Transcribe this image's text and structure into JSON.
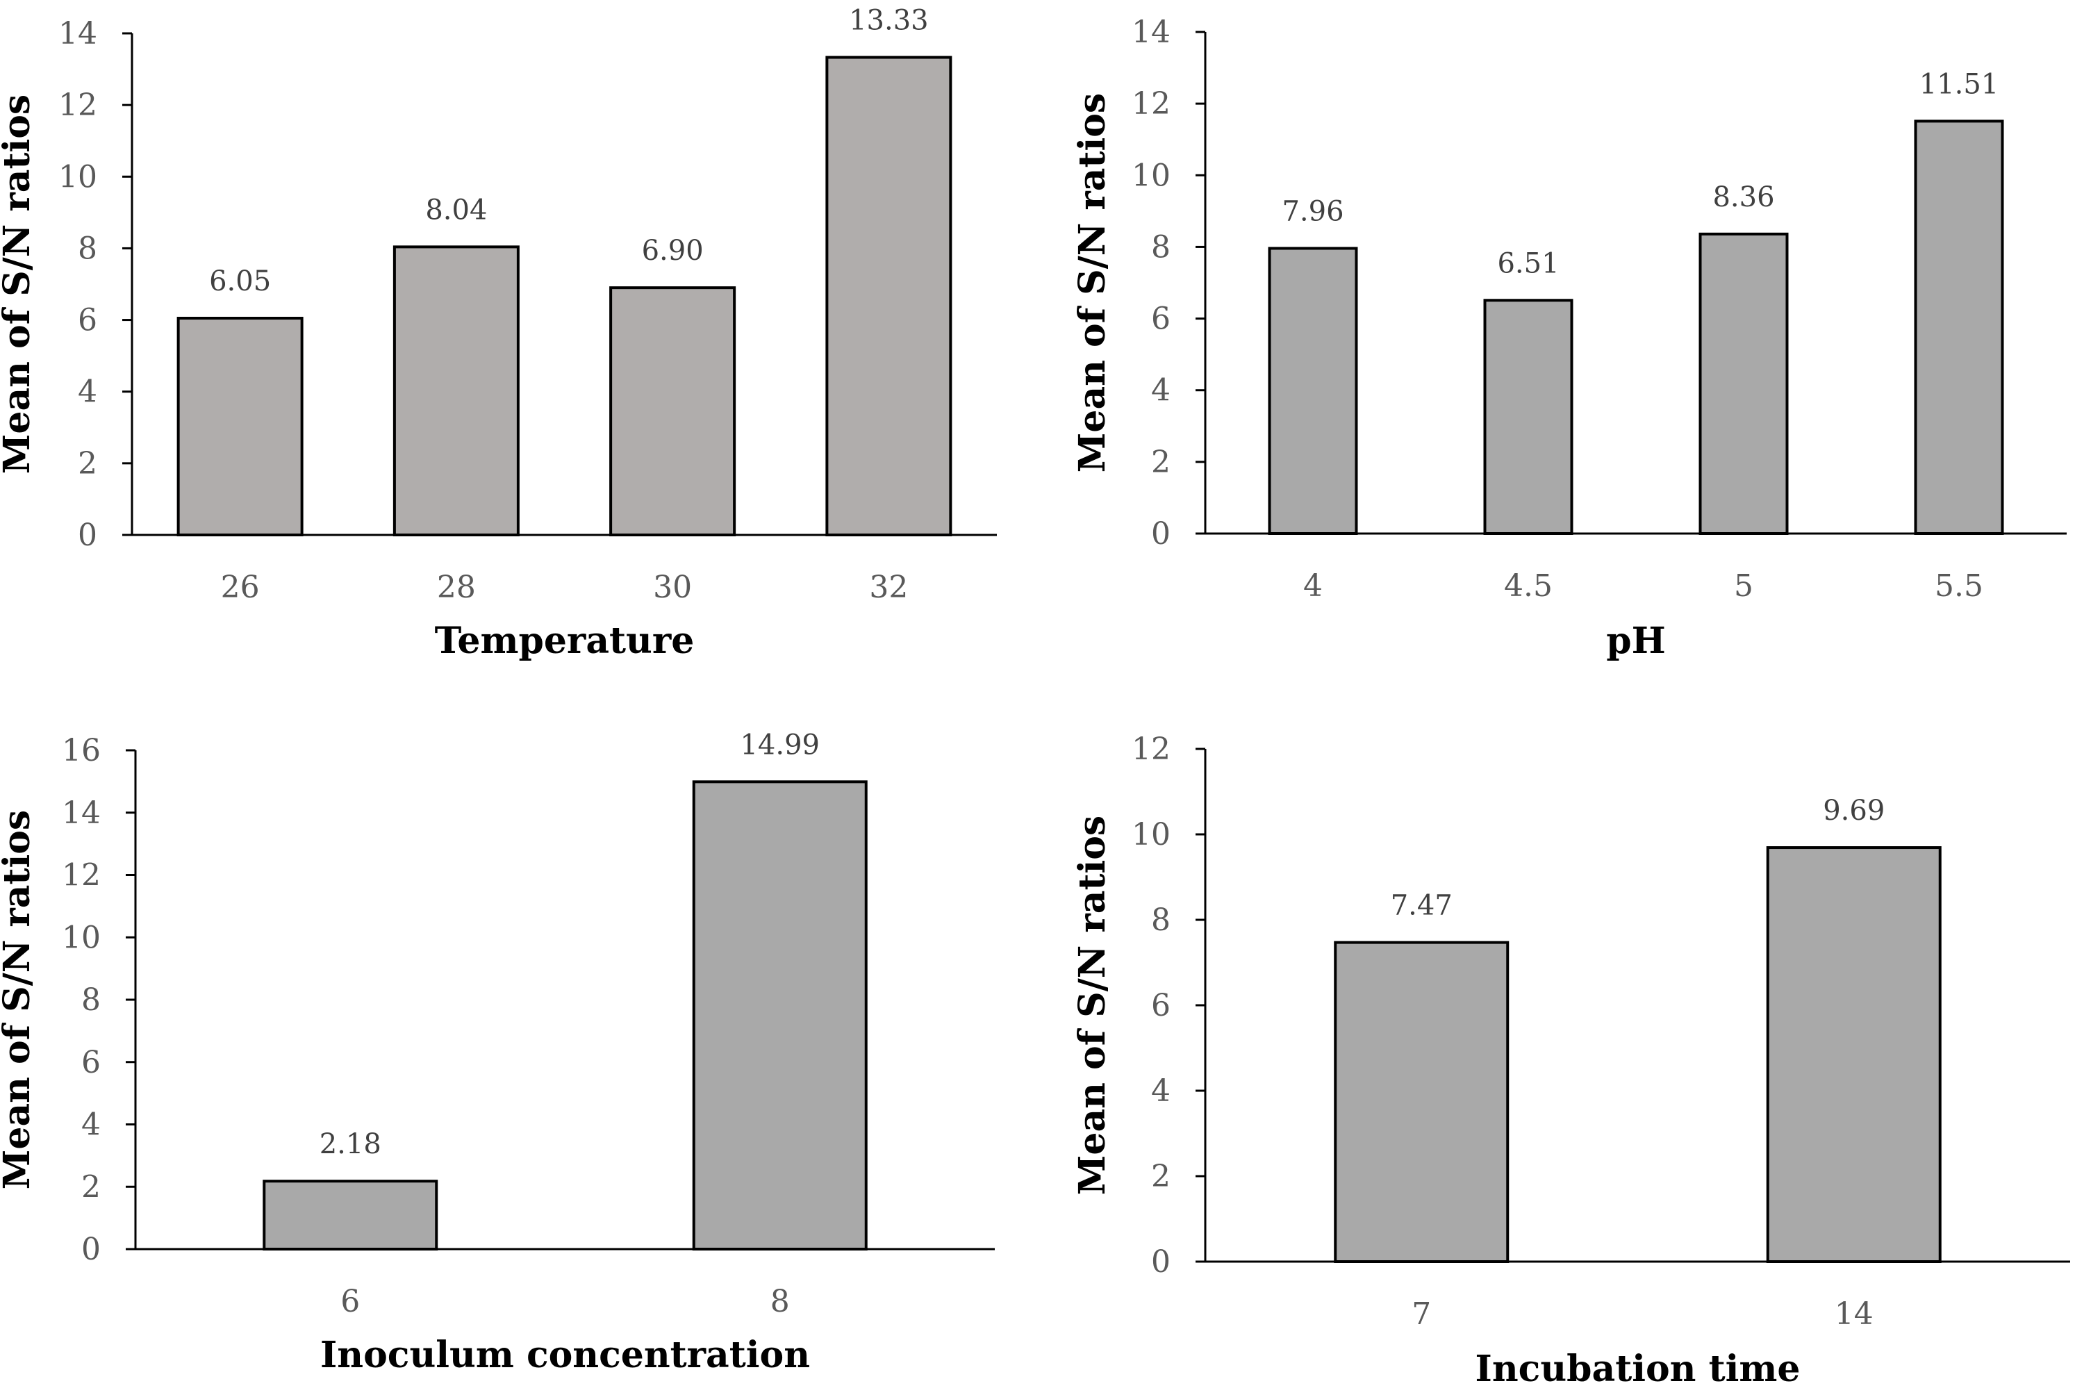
{
  "chart_data": [
    {
      "type": "bar",
      "categories": [
        "26",
        "28",
        "30",
        "32"
      ],
      "values": [
        6.05,
        8.04,
        6.9,
        13.33
      ],
      "value_labels": [
        "6.05",
        "8.04",
        "6.90",
        "13.33"
      ],
      "xlabel": "Temperature",
      "ylabel": "Mean of S/N ratios",
      "ylim": [
        0,
        14
      ],
      "yticks": [
        0,
        2,
        4,
        6,
        8,
        10,
        12,
        14
      ],
      "grid": false,
      "bar_color": "#b0adac"
    },
    {
      "type": "bar",
      "categories": [
        "4",
        "4.5",
        "5",
        "5.5"
      ],
      "values": [
        7.96,
        6.51,
        8.36,
        11.51
      ],
      "value_labels": [
        "7.96",
        "6.51",
        "8.36",
        "11.51"
      ],
      "xlabel": "pH",
      "ylabel": "Mean of S/N ratios",
      "ylim": [
        0,
        14
      ],
      "yticks": [
        0,
        2,
        4,
        6,
        8,
        10,
        12,
        14
      ],
      "grid": false,
      "bar_color": "#a9a9a9"
    },
    {
      "type": "bar",
      "categories": [
        "6",
        "8"
      ],
      "values": [
        2.18,
        14.99
      ],
      "value_labels": [
        "2.18",
        "14.99"
      ],
      "xlabel": "Inoculum concentration",
      "ylabel": "Mean of S/N ratios",
      "ylim": [
        0,
        16
      ],
      "yticks": [
        0,
        2,
        4,
        6,
        8,
        10,
        12,
        14,
        16
      ],
      "grid": false,
      "bar_color": "#a9a9a9"
    },
    {
      "type": "bar",
      "categories": [
        "7",
        "14"
      ],
      "values": [
        7.47,
        9.69
      ],
      "value_labels": [
        "7.47",
        "9.69"
      ],
      "xlabel": "Incubation time",
      "ylabel": "Mean of S/N ratios",
      "ylim": [
        0,
        12
      ],
      "yticks": [
        0,
        2,
        4,
        6,
        8,
        10,
        12
      ],
      "grid": false,
      "bar_color": "#a9a9a9"
    }
  ]
}
